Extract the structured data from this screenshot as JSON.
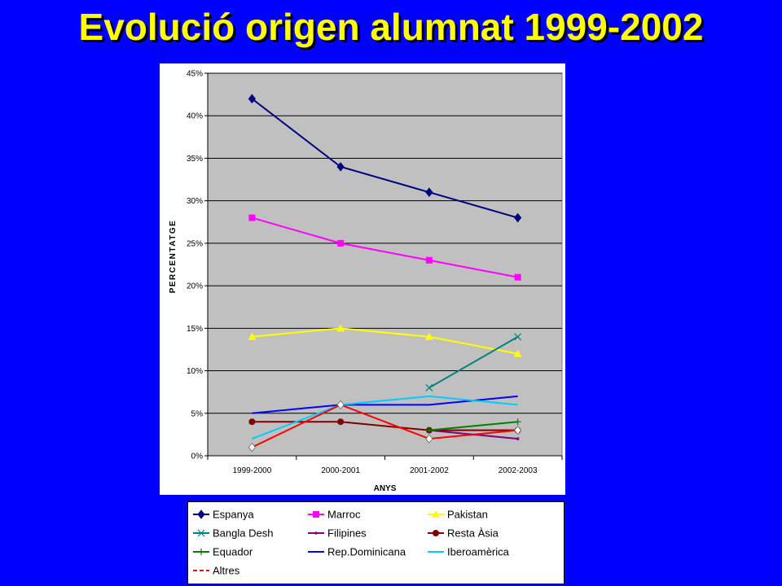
{
  "slide": {
    "title": "Evolució origen alumnat 1999-2002"
  },
  "chart_data": {
    "type": "line",
    "title": "",
    "xlabel": "ANYS",
    "ylabel": "PERCENTATGE",
    "ylim": [
      0,
      45
    ],
    "yticks": [
      "0%",
      "5%",
      "10%",
      "15%",
      "20%",
      "25%",
      "30%",
      "35%",
      "40%",
      "45%"
    ],
    "categories": [
      "1999-2000",
      "2000-2001",
      "2001-2002",
      "2002-2003"
    ],
    "grid": true,
    "legend_position": "bottom",
    "series": [
      {
        "name": "Espanya",
        "values": [
          42,
          34,
          31,
          28
        ],
        "color": "#000080",
        "marker": "diamond"
      },
      {
        "name": "Marroc",
        "values": [
          28,
          25,
          23,
          21
        ],
        "color": "#FF00FF",
        "marker": "square"
      },
      {
        "name": "Pakistan",
        "values": [
          14,
          15,
          14,
          12
        ],
        "color": "#FFFF00",
        "marker": "triangle"
      },
      {
        "name": "Bangla Desh",
        "values": [
          null,
          null,
          8,
          14
        ],
        "color": "#008080",
        "marker": "x"
      },
      {
        "name": "Filipines",
        "values": [
          null,
          null,
          3,
          2
        ],
        "color": "#800080",
        "marker": "dot"
      },
      {
        "name": "Resta Àsia",
        "values": [
          4,
          4,
          3,
          3
        ],
        "color": "#800000",
        "marker": "circle"
      },
      {
        "name": "Equador",
        "values": [
          null,
          null,
          3,
          4
        ],
        "color": "#008000",
        "marker": "plus"
      },
      {
        "name": "Rep.Dominicana",
        "values": [
          5,
          6,
          6,
          7
        ],
        "color": "#0000FF",
        "marker": "none"
      },
      {
        "name": "Iberoamèrica",
        "values": [
          2,
          6,
          7,
          6
        ],
        "color": "#00CCFF",
        "marker": "none"
      },
      {
        "name": "Altres",
        "values": [
          1,
          6,
          2,
          3
        ],
        "color": "#FF0000",
        "marker": "whitediamond",
        "dashed_legend": true
      }
    ]
  }
}
